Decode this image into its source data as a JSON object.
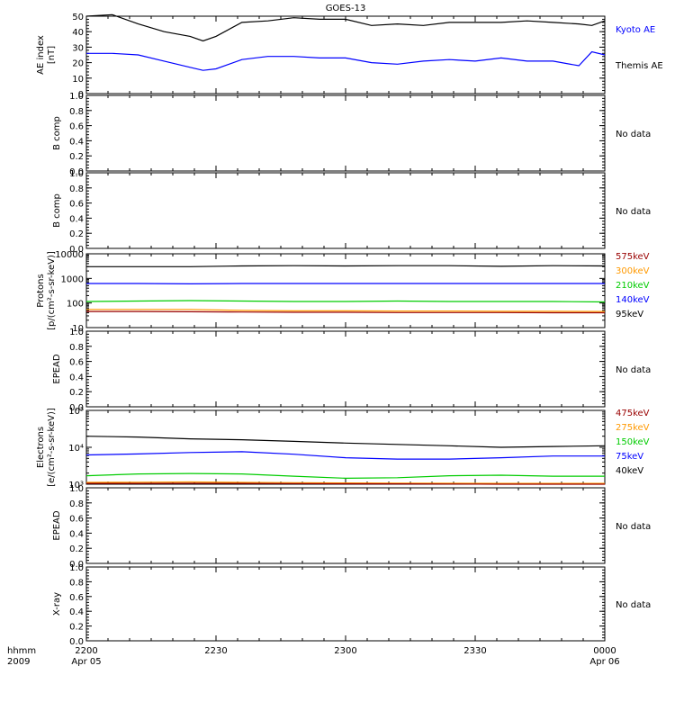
{
  "title": "GOES-13",
  "time_axis": {
    "row1_label": "hhmm",
    "row2_label": "2009",
    "ticks": [
      {
        "t": 0,
        "label": "2200",
        "date": "Apr 05"
      },
      {
        "t": 30,
        "label": "2230",
        "date": ""
      },
      {
        "t": 60,
        "label": "2300",
        "date": ""
      },
      {
        "t": 90,
        "label": "2330",
        "date": ""
      },
      {
        "t": 120,
        "label": "0000",
        "date": "Apr 06"
      }
    ]
  },
  "chart_data": [
    {
      "type": "line",
      "ylabel": [
        "AE index",
        "[nT]"
      ],
      "ylim": [
        0,
        50
      ],
      "yscale": "linear",
      "yticks": [
        {
          "v": 0,
          "label": "0"
        },
        {
          "v": 10,
          "label": "10"
        },
        {
          "v": 20,
          "label": "20"
        },
        {
          "v": 30,
          "label": "30"
        },
        {
          "v": 40,
          "label": "40"
        },
        {
          "v": 50,
          "label": "50"
        }
      ],
      "x": [
        0,
        6,
        12,
        18,
        24,
        27,
        30,
        36,
        42,
        48,
        54,
        60,
        66,
        72,
        78,
        84,
        90,
        96,
        102,
        108,
        114,
        117,
        120
      ],
      "series": [
        {
          "name": "Kyoto AE",
          "color": "#0000ff",
          "values": [
            26,
            26,
            25,
            21,
            17,
            15,
            16,
            22,
            24,
            24,
            23,
            23,
            20,
            19,
            21,
            22,
            21,
            23,
            21,
            21,
            18,
            27,
            25
          ]
        },
        {
          "name": "Themis AE",
          "color": "#000000",
          "values": [
            50,
            51,
            45,
            40,
            37,
            34,
            37,
            46,
            47,
            49,
            48,
            48,
            44,
            45,
            44,
            46,
            46,
            46,
            47,
            46,
            45,
            44,
            47
          ]
        }
      ],
      "legend_order": [
        "Kyoto AE",
        "Themis AE"
      ]
    },
    {
      "type": "line",
      "ylabel": [
        "B comp"
      ],
      "ylim": [
        0,
        1
      ],
      "yscale": "linear",
      "yticks": [
        {
          "v": 0,
          "label": "0.0"
        },
        {
          "v": 0.2,
          "label": "0.2"
        },
        {
          "v": 0.4,
          "label": "0.4"
        },
        {
          "v": 0.6,
          "label": "0.6"
        },
        {
          "v": 0.8,
          "label": "0.8"
        },
        {
          "v": 1,
          "label": "1.0"
        }
      ],
      "note": "No data",
      "series": []
    },
    {
      "type": "line",
      "ylabel": [
        "B comp"
      ],
      "ylim": [
        0,
        1
      ],
      "yscale": "linear",
      "yticks": [
        {
          "v": 0,
          "label": "0.0"
        },
        {
          "v": 0.2,
          "label": "0.2"
        },
        {
          "v": 0.4,
          "label": "0.4"
        },
        {
          "v": 0.6,
          "label": "0.6"
        },
        {
          "v": 0.8,
          "label": "0.8"
        },
        {
          "v": 1,
          "label": "1.0"
        }
      ],
      "note": "No data",
      "series": []
    },
    {
      "type": "line",
      "ylabel": [
        "Protons",
        "[p/(cm²-s-sr-keV)]"
      ],
      "ylim": [
        10,
        10000
      ],
      "yscale": "log",
      "yticks": [
        {
          "v": 10,
          "label": "10"
        },
        {
          "v": 100,
          "label": "100"
        },
        {
          "v": 1000,
          "label": "1000"
        },
        {
          "v": 10000,
          "label": "10000"
        }
      ],
      "x": [
        0,
        12,
        24,
        36,
        48,
        60,
        72,
        84,
        96,
        108,
        120
      ],
      "series": [
        {
          "name": "95keV",
          "color": "#000000",
          "values": [
            3000,
            3000,
            3000,
            3200,
            3300,
            3200,
            3300,
            3300,
            3100,
            3300,
            3200
          ]
        },
        {
          "name": "140keV",
          "color": "#0000ff",
          "values": [
            620,
            620,
            600,
            620,
            620,
            620,
            620,
            620,
            620,
            620,
            620
          ]
        },
        {
          "name": "210keV",
          "color": "#00cc00",
          "values": [
            115,
            120,
            125,
            120,
            115,
            115,
            120,
            115,
            115,
            115,
            110
          ]
        },
        {
          "name": "300keV",
          "color": "#ff9900",
          "values": [
            55,
            55,
            55,
            50,
            48,
            48,
            47,
            47,
            46,
            46,
            45
          ]
        },
        {
          "name": "575keV",
          "color": "#990000",
          "values": [
            45,
            45,
            44,
            43,
            42,
            42,
            41,
            41,
            41,
            40,
            40
          ]
        }
      ],
      "legend_order": [
        "575keV",
        "300keV",
        "210keV",
        "140keV",
        "95keV"
      ]
    },
    {
      "type": "line",
      "ylabel": [
        "EPEAD"
      ],
      "ylim": [
        0,
        1
      ],
      "yscale": "linear",
      "yticks": [
        {
          "v": 0,
          "label": "0.0"
        },
        {
          "v": 0.2,
          "label": "0.2"
        },
        {
          "v": 0.4,
          "label": "0.4"
        },
        {
          "v": 0.6,
          "label": "0.6"
        },
        {
          "v": 0.8,
          "label": "0.8"
        },
        {
          "v": 1,
          "label": "1.0"
        }
      ],
      "note": "No data",
      "series": []
    },
    {
      "type": "line",
      "ylabel": [
        "Electrons",
        "[e/(cm²-s-sr-keV)]"
      ],
      "ylim": [
        1000,
        100000
      ],
      "yscale": "log",
      "yticks": [
        {
          "v": 1000,
          "label": "10³"
        },
        {
          "v": 10000,
          "label": "10⁴"
        },
        {
          "v": 100000,
          "label": "10⁵"
        }
      ],
      "x": [
        0,
        12,
        24,
        36,
        48,
        60,
        72,
        84,
        96,
        108,
        120
      ],
      "series": [
        {
          "name": "40keV",
          "color": "#000000",
          "values": [
            20000,
            19000,
            17000,
            16000,
            14500,
            13000,
            12000,
            11000,
            10000,
            10500,
            11000
          ]
        },
        {
          "name": "75keV",
          "color": "#0000ff",
          "values": [
            6200,
            6600,
            7200,
            7600,
            6500,
            5200,
            4800,
            4800,
            5200,
            5800,
            5800
          ]
        },
        {
          "name": "150keV",
          "color": "#00cc00",
          "values": [
            1700,
            1900,
            1950,
            1900,
            1650,
            1450,
            1500,
            1700,
            1750,
            1650,
            1650
          ]
        },
        {
          "name": "275keV",
          "color": "#ff9900",
          "values": [
            1120,
            1130,
            1150,
            1120,
            1100,
            1080,
            1070,
            1060,
            1050,
            1050,
            1050
          ]
        },
        {
          "name": "475keV",
          "color": "#990000",
          "values": [
            1050,
            1050,
            1060,
            1050,
            1040,
            1030,
            1020,
            1010,
            1000,
            1000,
            1000
          ]
        }
      ],
      "legend_order": [
        "475keV",
        "275keV",
        "150keV",
        "75keV",
        "40keV"
      ]
    },
    {
      "type": "line",
      "ylabel": [
        "EPEAD"
      ],
      "ylim": [
        0,
        1
      ],
      "yscale": "linear",
      "yticks": [
        {
          "v": 0,
          "label": "0.0"
        },
        {
          "v": 0.2,
          "label": "0.2"
        },
        {
          "v": 0.4,
          "label": "0.4"
        },
        {
          "v": 0.6,
          "label": "0.6"
        },
        {
          "v": 0.8,
          "label": "0.8"
        },
        {
          "v": 1,
          "label": "1.0"
        }
      ],
      "note": "No data",
      "series": []
    },
    {
      "type": "line",
      "ylabel": [
        "X-ray"
      ],
      "ylim": [
        0,
        1
      ],
      "yscale": "linear",
      "yticks": [
        {
          "v": 0,
          "label": "0.0"
        },
        {
          "v": 0.2,
          "label": "0.2"
        },
        {
          "v": 0.4,
          "label": "0.4"
        },
        {
          "v": 0.6,
          "label": "0.6"
        },
        {
          "v": 0.8,
          "label": "0.8"
        },
        {
          "v": 1,
          "label": "1.0"
        }
      ],
      "note": "No data",
      "series": []
    }
  ]
}
